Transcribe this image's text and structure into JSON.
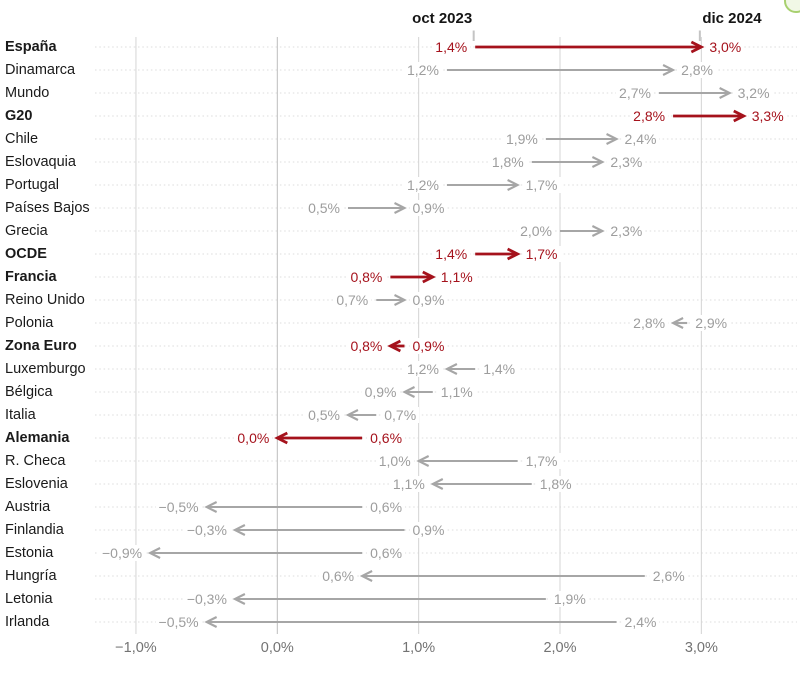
{
  "chart_data": {
    "type": "arrow",
    "period_labels": {
      "start": "oct 2023",
      "end": "dic 2024"
    },
    "x_axis": {
      "tick_labels": [
        "−1,0%",
        "0,0%",
        "1,0%",
        "2,0%",
        "3,0%"
      ],
      "tick_values": [
        -1,
        0,
        1,
        2,
        3
      ],
      "range": [
        -1.3,
        3.7
      ]
    },
    "colors": {
      "highlight": "#a5121c",
      "muted": "#a6a6a6",
      "muted_text": "#9d9d9d"
    },
    "legend": "arrows run from oct 2023 value to dic 2024 value; arrowhead marks dic 2024",
    "rows": [
      {
        "label": "España",
        "start": 1.4,
        "end": 3.0,
        "start_label": "1,4%",
        "end_label": "3,0%",
        "highlight": true
      },
      {
        "label": "Dinamarca",
        "start": 1.2,
        "end": 2.8,
        "start_label": "1,2%",
        "end_label": "2,8%",
        "highlight": false
      },
      {
        "label": "Mundo",
        "start": 2.7,
        "end": 3.2,
        "start_label": "2,7%",
        "end_label": "3,2%",
        "highlight": false
      },
      {
        "label": "G20",
        "start": 2.8,
        "end": 3.3,
        "start_label": "2,8%",
        "end_label": "3,3%",
        "highlight": true
      },
      {
        "label": "Chile",
        "start": 1.9,
        "end": 2.4,
        "start_label": "1,9%",
        "end_label": "2,4%",
        "highlight": false
      },
      {
        "label": "Eslovaquia",
        "start": 1.8,
        "end": 2.3,
        "start_label": "1,8%",
        "end_label": "2,3%",
        "highlight": false
      },
      {
        "label": "Portugal",
        "start": 1.2,
        "end": 1.7,
        "start_label": "1,2%",
        "end_label": "1,7%",
        "highlight": false
      },
      {
        "label": "Países Bajos",
        "start": 0.5,
        "end": 0.9,
        "start_label": "0,5%",
        "end_label": "0,9%",
        "highlight": false
      },
      {
        "label": "Grecia",
        "start": 2.0,
        "end": 2.3,
        "start_label": "2,0%",
        "end_label": "2,3%",
        "highlight": false
      },
      {
        "label": "OCDE",
        "start": 1.4,
        "end": 1.7,
        "start_label": "1,4%",
        "end_label": "1,7%",
        "highlight": true
      },
      {
        "label": "Francia",
        "start": 0.8,
        "end": 1.1,
        "start_label": "0,8%",
        "end_label": "1,1%",
        "highlight": true
      },
      {
        "label": "Reino Unido",
        "start": 0.7,
        "end": 0.9,
        "start_label": "0,7%",
        "end_label": "0,9%",
        "highlight": false
      },
      {
        "label": "Polonia",
        "start": 2.9,
        "end": 2.8,
        "start_label": "2,9%",
        "end_label": "2,8%",
        "highlight": false
      },
      {
        "label": "Zona Euro",
        "start": 0.9,
        "end": 0.8,
        "start_label": "0,9%",
        "end_label": "0,8%",
        "highlight": true
      },
      {
        "label": "Luxemburgo",
        "start": 1.4,
        "end": 1.2,
        "start_label": "1,4%",
        "end_label": "1,2%",
        "highlight": false
      },
      {
        "label": "Bélgica",
        "start": 1.1,
        "end": 0.9,
        "start_label": "1,1%",
        "end_label": "0,9%",
        "highlight": false
      },
      {
        "label": "Italia",
        "start": 0.7,
        "end": 0.5,
        "start_label": "0,7%",
        "end_label": "0,5%",
        "highlight": false
      },
      {
        "label": "Alemania",
        "start": 0.6,
        "end": 0.0,
        "start_label": "0,6%",
        "end_label": "0,0%",
        "highlight": true
      },
      {
        "label": "R. Checa",
        "start": 1.7,
        "end": 1.0,
        "start_label": "1,7%",
        "end_label": "1,0%",
        "highlight": false
      },
      {
        "label": "Eslovenia",
        "start": 1.8,
        "end": 1.1,
        "start_label": "1,8%",
        "end_label": "1,1%",
        "highlight": false
      },
      {
        "label": "Austria",
        "start": 0.6,
        "end": -0.5,
        "start_label": "0,6%",
        "end_label": "−0,5%",
        "highlight": false
      },
      {
        "label": "Finlandia",
        "start": 0.9,
        "end": -0.3,
        "start_label": "0,9%",
        "end_label": "−0,3%",
        "highlight": false
      },
      {
        "label": "Estonia",
        "start": 0.6,
        "end": -0.9,
        "start_label": "0,6%",
        "end_label": "−0,9%",
        "highlight": false
      },
      {
        "label": "Hungría",
        "start": 2.6,
        "end": 0.6,
        "start_label": "2,6%",
        "end_label": "0,6%",
        "highlight": false
      },
      {
        "label": "Letonia",
        "start": 1.9,
        "end": -0.3,
        "start_label": "1,9%",
        "end_label": "−0,3%",
        "highlight": false
      },
      {
        "label": "Irlanda",
        "start": 2.4,
        "end": -0.5,
        "start_label": "2,4%",
        "end_label": "−0,5%",
        "highlight": false
      }
    ]
  },
  "corner_icon_color": "#a8d06f"
}
